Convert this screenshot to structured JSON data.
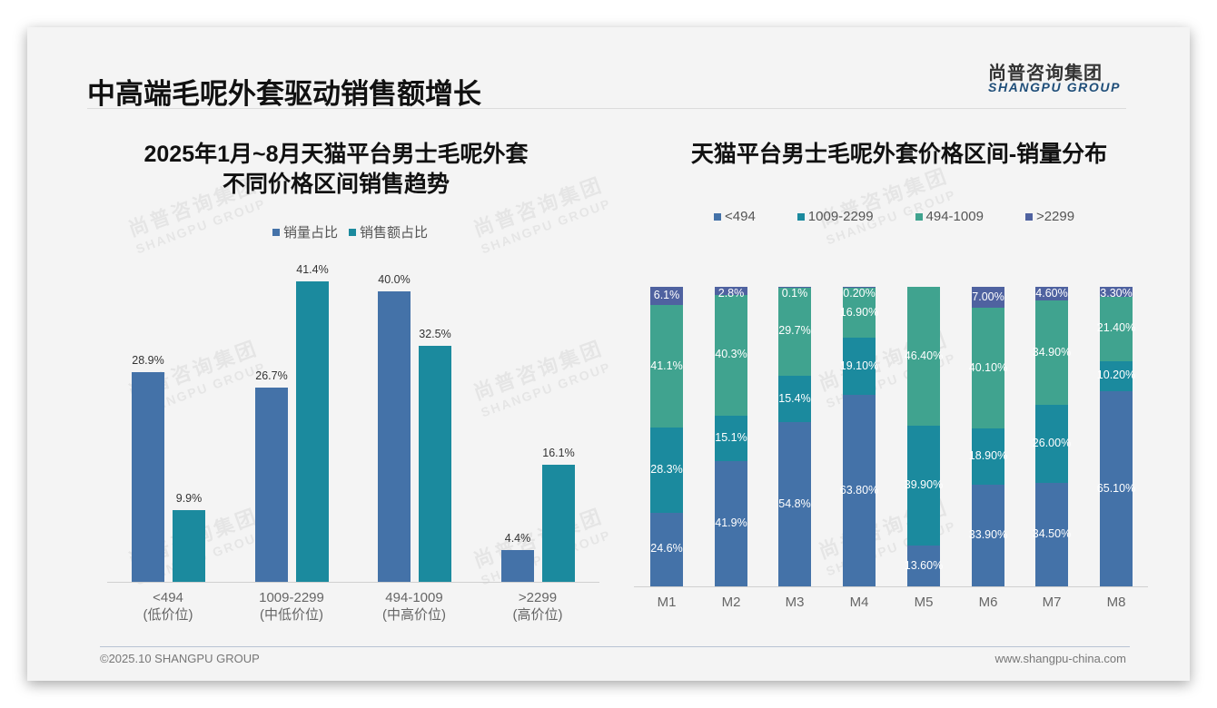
{
  "header": {
    "title": "中高端毛呢外套驱动销售额增长",
    "logo_cn": "尚普咨询集团",
    "logo_en": "SHANGPU GROUP"
  },
  "watermark": {
    "cn": "尚普咨询集团",
    "en": "SHANGPU GROUP"
  },
  "footer": {
    "copyright": "©2025.10 SHANGPU GROUP",
    "website": "www.shangpu-china.com"
  },
  "colors": {
    "blue": "#4472a8",
    "teal": "#1b8a9e",
    "green": "#40a38f",
    "purple": "#4f62a0"
  },
  "left_chart": {
    "title_line1": "2025年1月~8月天猫平台男士毛呢外套",
    "title_line2": "不同价格区间销售趋势",
    "legend": [
      "销量占比",
      "销售额占比"
    ]
  },
  "right_chart": {
    "title": "天猫平台男士毛呢外套价格区间-销量分布",
    "legend": [
      "<494",
      "1009-2299",
      "494-1009",
      ">2299"
    ]
  },
  "chart_data": [
    {
      "type": "bar",
      "title": "2025年1月~8月天猫平台男士毛呢外套不同价格区间销售趋势",
      "categories": [
        "<494\n(低价位)",
        "1009-2299\n(中低价位)",
        "494-1009\n(中高价位)",
        ">2299\n(高价位)"
      ],
      "category_ranges": [
        "<494",
        "1009-2299",
        "494-1009",
        ">2299"
      ],
      "category_tiers": [
        "(低价位)",
        "(中低价位)",
        "(中高价位)",
        "(高价位)"
      ],
      "series": [
        {
          "name": "销量占比",
          "values": [
            28.9,
            26.7,
            40.0,
            4.4
          ],
          "labels": [
            "28.9%",
            "26.7%",
            "40.0%",
            "4.4%"
          ]
        },
        {
          "name": "销售额占比",
          "values": [
            9.9,
            41.4,
            32.5,
            16.1
          ],
          "labels": [
            "9.9%",
            "41.4%",
            "32.5%",
            "16.1%"
          ]
        }
      ],
      "xlabel": "",
      "ylabel": "",
      "legend_position": "top",
      "grid": false
    },
    {
      "type": "bar",
      "stacked": true,
      "percent": true,
      "title": "天猫平台男士毛呢外套价格区间-销量分布",
      "categories": [
        "M1",
        "M2",
        "M3",
        "M4",
        "M5",
        "M6",
        "M7",
        "M8"
      ],
      "series": [
        {
          "name": "<494",
          "values": [
            24.6,
            41.9,
            54.8,
            63.8,
            13.6,
            33.9,
            34.5,
            65.1
          ],
          "labels": [
            "24.6%",
            "41.9%",
            "54.8%",
            "63.80%",
            "13.60%",
            "33.90%",
            "34.50%",
            "65.10%"
          ]
        },
        {
          "name": "1009-2299",
          "values": [
            28.3,
            15.1,
            15.4,
            19.1,
            39.9,
            18.9,
            26.0,
            10.2
          ],
          "labels": [
            "28.3%",
            "15.1%",
            "15.4%",
            "19.10%",
            "39.90%",
            "18.90%",
            "26.00%",
            "10.20%"
          ]
        },
        {
          "name": "494-1009",
          "values": [
            41.1,
            40.3,
            29.7,
            16.9,
            46.4,
            40.1,
            34.9,
            21.4
          ],
          "labels": [
            "41.1%",
            "40.3%",
            "29.7%",
            "16.90%",
            "46.40%",
            "40.10%",
            "34.90%",
            "21.40%"
          ]
        },
        {
          "name": ">2299",
          "values": [
            6.1,
            2.8,
            0.1,
            0.2,
            0.0,
            7.0,
            4.6,
            3.3
          ],
          "labels": [
            "6.1%",
            "2.8%",
            "0.1%",
            "0.20%",
            "",
            "7.00%",
            "4.60%",
            "3.30%"
          ]
        }
      ],
      "xlabel": "",
      "ylabel": "",
      "ylim": [
        0,
        100
      ],
      "legend_position": "top",
      "grid": false
    }
  ]
}
